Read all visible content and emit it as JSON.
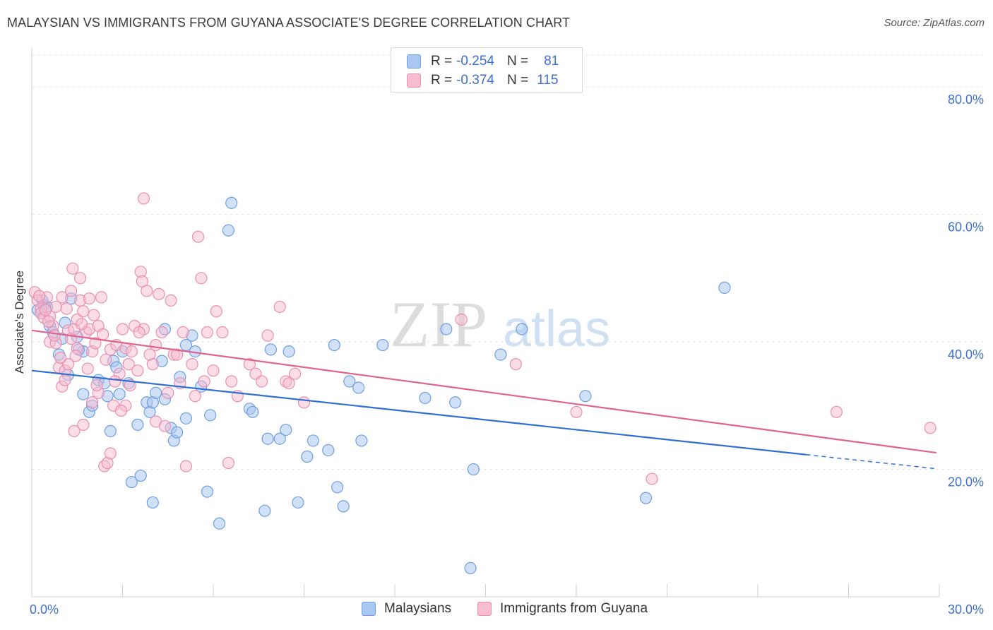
{
  "title": "MALAYSIAN VS IMMIGRANTS FROM GUYANA ASSOCIATE'S DEGREE CORRELATION CHART",
  "source": "Source: ZipAtlas.com",
  "watermark": {
    "zip": "ZIP",
    "atlas": "atlas"
  },
  "colors": {
    "blue_fill": "#a9c7f0",
    "blue_stroke": "#6f9fe0",
    "blue_line": "#2f6fd0",
    "pink_fill": "#f6bcd0",
    "pink_stroke": "#ea8fb0",
    "pink_line": "#e0628f",
    "axis_label": "#3d6fcf",
    "grid": "#e6e6e6"
  },
  "legend": {
    "rows": [
      {
        "r_label": "R =",
        "r_value": "-0.254",
        "n_label": "N =",
        "n_value": "81"
      },
      {
        "r_label": "R =",
        "r_value": "-0.374",
        "n_label": "N =",
        "n_value": "115"
      }
    ]
  },
  "bottom_legend": {
    "items": [
      "Malaysians",
      "Immigrants from Guyana"
    ]
  },
  "chart_data": {
    "type": "scatter",
    "title": "MALAYSIAN VS IMMIGRANTS FROM GUYANA ASSOCIATE'S DEGREE CORRELATION CHART",
    "xlabel": "",
    "ylabel": "Associate's Degree",
    "xlim": [
      0,
      30
    ],
    "ylim": [
      0,
      85
    ],
    "x_tick_labels": [
      "0.0%",
      "30.0%"
    ],
    "y_ticks": [
      20,
      40,
      60,
      80
    ],
    "y_tick_labels": [
      "20.0%",
      "40.0%",
      "60.0%",
      "80.0%"
    ],
    "grid": true,
    "legend_position": "top-center",
    "series": [
      {
        "name": "Malaysians",
        "color": "#a9c7f0",
        "r": -0.254,
        "n": 81,
        "trend": {
          "x0": 0,
          "y0": 35.5,
          "x1": 25.6,
          "y1": 22.3,
          "dashed_to_x": 29.9,
          "dashed_to_y": 20.1
        },
        "points": [
          [
            0.2,
            45.0
          ],
          [
            0.3,
            44.5
          ],
          [
            0.4,
            45.8
          ],
          [
            0.5,
            45.5
          ],
          [
            0.6,
            42.5
          ],
          [
            0.7,
            41.5
          ],
          [
            0.9,
            38.0
          ],
          [
            1.0,
            40.5
          ],
          [
            1.1,
            43.0
          ],
          [
            1.2,
            34.8
          ],
          [
            1.3,
            46.8
          ],
          [
            1.5,
            40.8
          ],
          [
            1.7,
            38.5
          ],
          [
            1.7,
            31.8
          ],
          [
            1.9,
            29.0
          ],
          [
            2.0,
            30.0
          ],
          [
            2.2,
            34.0
          ],
          [
            2.4,
            33.5
          ],
          [
            2.5,
            31.5
          ],
          [
            2.6,
            26.0
          ],
          [
            2.7,
            37.0
          ],
          [
            2.8,
            36.0
          ],
          [
            2.9,
            31.8
          ],
          [
            3.0,
            38.5
          ],
          [
            3.2,
            33.5
          ],
          [
            3.3,
            18.0
          ],
          [
            3.5,
            27.0
          ],
          [
            3.6,
            19.0
          ],
          [
            3.8,
            30.5
          ],
          [
            3.9,
            29.0
          ],
          [
            4.0,
            30.5
          ],
          [
            4.0,
            14.8
          ],
          [
            4.1,
            32.0
          ],
          [
            4.3,
            37.0
          ],
          [
            4.4,
            42.0
          ],
          [
            4.4,
            31.0
          ],
          [
            4.6,
            26.5
          ],
          [
            4.7,
            24.5
          ],
          [
            4.8,
            25.8
          ],
          [
            4.9,
            34.5
          ],
          [
            5.1,
            39.5
          ],
          [
            5.1,
            28.0
          ],
          [
            5.3,
            41.0
          ],
          [
            5.4,
            38.5
          ],
          [
            5.6,
            33.0
          ],
          [
            5.8,
            16.5
          ],
          [
            5.9,
            28.5
          ],
          [
            6.2,
            11.5
          ],
          [
            6.5,
            57.5
          ],
          [
            6.6,
            61.8
          ],
          [
            7.2,
            29.5
          ],
          [
            7.3,
            29.0
          ],
          [
            7.7,
            13.5
          ],
          [
            7.8,
            24.8
          ],
          [
            7.9,
            38.8
          ],
          [
            8.2,
            24.8
          ],
          [
            8.4,
            26.2
          ],
          [
            8.5,
            38.5
          ],
          [
            8.8,
            14.8
          ],
          [
            9.1,
            22.0
          ],
          [
            9.3,
            24.5
          ],
          [
            9.8,
            23.0
          ],
          [
            10.0,
            39.5
          ],
          [
            10.1,
            17.2
          ],
          [
            10.3,
            14.2
          ],
          [
            10.5,
            33.8
          ],
          [
            10.8,
            32.8
          ],
          [
            10.9,
            24.5
          ],
          [
            11.6,
            39.5
          ],
          [
            13.0,
            31.2
          ],
          [
            13.7,
            42.0
          ],
          [
            14.0,
            30.5
          ],
          [
            14.5,
            4.5
          ],
          [
            14.6,
            20.0
          ],
          [
            15.5,
            38.0
          ],
          [
            16.2,
            42.0
          ],
          [
            18.3,
            31.5
          ],
          [
            20.3,
            15.5
          ],
          [
            22.9,
            48.5
          ],
          [
            0.35,
            46.5
          ],
          [
            1.55,
            38.8
          ]
        ]
      },
      {
        "name": "Immigrants from Guyana",
        "color": "#f6bcd0",
        "r": -0.374,
        "n": 115,
        "trend": {
          "x0": 0,
          "y0": 41.8,
          "x1": 29.9,
          "y1": 22.6
        },
        "points": [
          [
            0.1,
            47.8
          ],
          [
            0.2,
            46.5
          ],
          [
            0.3,
            45.2
          ],
          [
            0.3,
            44.5
          ],
          [
            0.4,
            43.8
          ],
          [
            0.5,
            47.0
          ],
          [
            0.6,
            44.0
          ],
          [
            0.6,
            40.0
          ],
          [
            0.7,
            42.5
          ],
          [
            0.8,
            39.8
          ],
          [
            0.8,
            45.5
          ],
          [
            0.9,
            36.0
          ],
          [
            1.0,
            47.0
          ],
          [
            1.0,
            33.0
          ],
          [
            1.1,
            35.5
          ],
          [
            1.1,
            34.0
          ],
          [
            1.2,
            41.8
          ],
          [
            1.2,
            36.5
          ],
          [
            1.3,
            48.0
          ],
          [
            1.3,
            40.5
          ],
          [
            1.4,
            42.0
          ],
          [
            1.4,
            26.0
          ],
          [
            1.5,
            43.5
          ],
          [
            1.5,
            39.0
          ],
          [
            1.6,
            46.5
          ],
          [
            1.6,
            50.0
          ],
          [
            1.7,
            44.8
          ],
          [
            1.7,
            27.0
          ],
          [
            1.8,
            41.5
          ],
          [
            1.9,
            42.0
          ],
          [
            1.9,
            46.8
          ],
          [
            2.0,
            38.5
          ],
          [
            2.0,
            30.5
          ],
          [
            2.1,
            39.8
          ],
          [
            2.2,
            32.0
          ],
          [
            2.2,
            42.5
          ],
          [
            2.3,
            47.0
          ],
          [
            2.4,
            20.5
          ],
          [
            2.5,
            21.0
          ],
          [
            2.6,
            22.5
          ],
          [
            2.6,
            38.8
          ],
          [
            2.7,
            30.0
          ],
          [
            2.8,
            39.5
          ],
          [
            2.9,
            35.0
          ],
          [
            3.0,
            42.0
          ],
          [
            3.1,
            39.0
          ],
          [
            3.1,
            30.0
          ],
          [
            3.2,
            36.5
          ],
          [
            3.3,
            38.5
          ],
          [
            3.4,
            42.5
          ],
          [
            3.5,
            35.5
          ],
          [
            3.6,
            51.0
          ],
          [
            3.7,
            62.5
          ],
          [
            3.7,
            42.0
          ],
          [
            3.8,
            48.0
          ],
          [
            3.9,
            38.0
          ],
          [
            4.0,
            36.5
          ],
          [
            4.1,
            27.5
          ],
          [
            4.1,
            39.5
          ],
          [
            4.2,
            47.5
          ],
          [
            4.3,
            41.5
          ],
          [
            4.4,
            26.8
          ],
          [
            4.5,
            32.0
          ],
          [
            4.6,
            46.5
          ],
          [
            4.7,
            38.0
          ],
          [
            4.8,
            38.0
          ],
          [
            4.9,
            33.5
          ],
          [
            5.0,
            41.5
          ],
          [
            5.1,
            20.5
          ],
          [
            5.3,
            36.5
          ],
          [
            5.4,
            31.5
          ],
          [
            5.5,
            56.5
          ],
          [
            5.6,
            50.0
          ],
          [
            5.7,
            33.8
          ],
          [
            5.8,
            41.5
          ],
          [
            6.0,
            35.5
          ],
          [
            6.1,
            44.8
          ],
          [
            6.3,
            41.5
          ],
          [
            6.5,
            21.0
          ],
          [
            6.6,
            33.8
          ],
          [
            6.8,
            31.5
          ],
          [
            7.2,
            36.5
          ],
          [
            7.4,
            35.0
          ],
          [
            7.6,
            33.8
          ],
          [
            7.8,
            41.0
          ],
          [
            8.2,
            45.5
          ],
          [
            8.4,
            33.8
          ],
          [
            8.5,
            33.5
          ],
          [
            8.7,
            35.0
          ],
          [
            9.0,
            30.5
          ],
          [
            14.2,
            43.5
          ],
          [
            16.0,
            36.5
          ],
          [
            18.0,
            29.0
          ],
          [
            20.5,
            18.5
          ],
          [
            26.6,
            29.0
          ],
          [
            29.7,
            26.5
          ],
          [
            0.25,
            47.2
          ],
          [
            0.45,
            45.0
          ],
          [
            0.55,
            43.2
          ],
          [
            0.75,
            41.0
          ],
          [
            0.95,
            37.5
          ],
          [
            1.15,
            45.2
          ],
          [
            1.35,
            51.5
          ],
          [
            1.45,
            37.8
          ],
          [
            1.65,
            42.8
          ],
          [
            1.85,
            35.8
          ],
          [
            2.05,
            44.2
          ],
          [
            2.15,
            33.2
          ],
          [
            2.35,
            41.2
          ],
          [
            2.45,
            37.2
          ],
          [
            2.75,
            33.8
          ],
          [
            2.95,
            29.2
          ],
          [
            3.25,
            33.2
          ],
          [
            3.55,
            41.5
          ],
          [
            3.65,
            49.5
          ]
        ]
      }
    ]
  }
}
